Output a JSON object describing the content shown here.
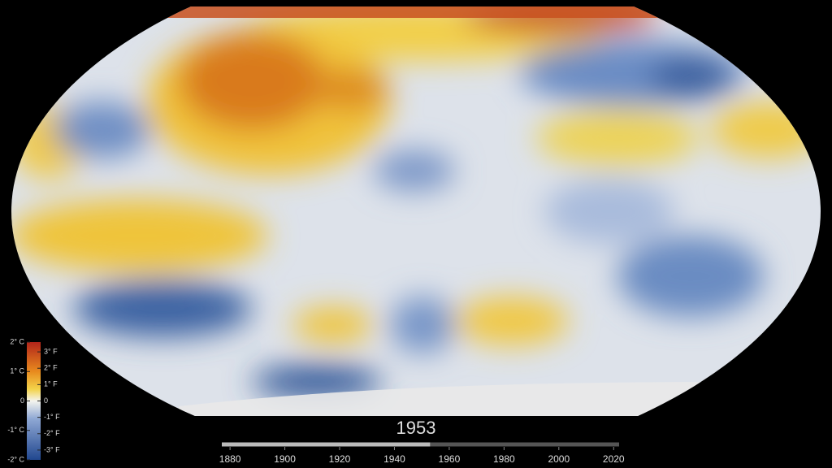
{
  "legend": {
    "clim": [
      -2,
      2
    ],
    "celsius": [
      {
        "value": 2,
        "label": "2° C"
      },
      {
        "value": 1,
        "label": "1° C"
      },
      0,
      {
        "value": -1,
        "label": "-1° C"
      },
      {
        "value": -2,
        "label": "-2° C"
      }
    ],
    "flim": [
      -3.6,
      3.6
    ],
    "fahrenheit": [
      {
        "value": 3,
        "label": "3° F"
      },
      {
        "value": 2,
        "label": "2° F"
      },
      {
        "value": 1,
        "label": "1° F"
      },
      0,
      {
        "value": -1,
        "label": "-1° F"
      },
      {
        "value": -2,
        "label": "-2° F"
      },
      {
        "value": -3,
        "label": "-3° F"
      }
    ]
  },
  "timeline": {
    "xlim": [
      1877,
      2022
    ],
    "ticks": [
      1880,
      1900,
      1920,
      1940,
      1960,
      1980,
      2000,
      2020
    ],
    "current": 1953
  }
}
